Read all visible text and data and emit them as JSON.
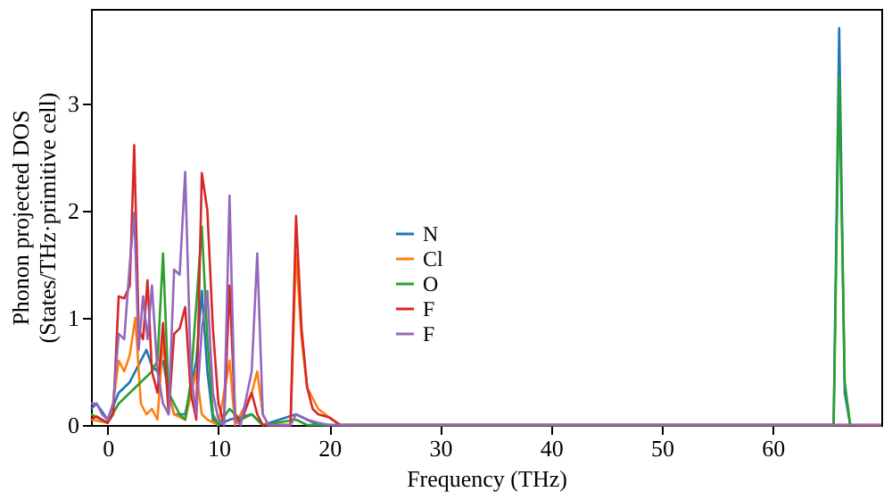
{
  "chart_data": {
    "type": "line",
    "xlabel": "Frequency (THz)",
    "ylabel": "Phonon projected DOS\n(States/THz·primitive cell)",
    "xlim": [
      -1.5,
      69.8
    ],
    "ylim": [
      0,
      3.88
    ],
    "xticks": [
      0,
      10,
      20,
      30,
      40,
      50,
      60
    ],
    "yticks": [
      0,
      1,
      2,
      3
    ],
    "grid": false,
    "legend": "center",
    "line_style": "solid",
    "marker": "none",
    "series": [
      {
        "name": "N",
        "color": "#1f77b4",
        "x": [
          -1.5,
          -1,
          0,
          1,
          2,
          3,
          3.5,
          4,
          4.5,
          5,
          5.5,
          6,
          7,
          8,
          8.5,
          9,
          9.5,
          10,
          11,
          13,
          13.5,
          14,
          17,
          18,
          19,
          65.5,
          66,
          66.5,
          67
        ],
        "values": [
          0.15,
          0.2,
          0.05,
          0.3,
          0.4,
          0.6,
          0.7,
          0.55,
          0.5,
          0.6,
          0.3,
          0.1,
          0.1,
          0.6,
          1.25,
          0.5,
          0.05,
          0,
          0.05,
          0.1,
          0.05,
          0,
          0.1,
          0.05,
          0,
          0,
          3.7,
          0.3,
          0
        ]
      },
      {
        "name": "Cl",
        "color": "#ff7f0e",
        "x": [
          -1.5,
          0,
          0.5,
          1,
          1.5,
          2,
          2.5,
          3,
          3.5,
          4,
          4.5,
          5,
          5.5,
          6,
          7,
          8,
          8.5,
          9,
          10,
          11,
          11.5,
          13,
          13.5,
          14,
          14.5,
          16.5,
          17,
          17.5,
          18,
          19,
          20,
          21,
          69.8
        ],
        "values": [
          0.05,
          0.02,
          0.2,
          0.6,
          0.5,
          0.65,
          1.0,
          0.2,
          0.1,
          0.15,
          0.05,
          0.8,
          0.3,
          0.1,
          0.05,
          0.5,
          0.1,
          0.05,
          0,
          0.6,
          0,
          0.3,
          0.5,
          0.1,
          0,
          0,
          1.6,
          0.8,
          0.35,
          0.15,
          0.07,
          0,
          0
        ]
      },
      {
        "name": "O",
        "color": "#2ca02c",
        "x": [
          -1.5,
          0,
          1,
          2,
          3,
          4,
          4.5,
          5,
          5.5,
          6,
          6.5,
          7,
          7.5,
          8.5,
          9,
          9.5,
          10,
          11,
          12,
          13,
          13.5,
          14,
          17,
          18,
          65.5,
          66,
          66.5,
          67
        ],
        "values": [
          0.1,
          0.02,
          0.2,
          0.3,
          0.4,
          0.5,
          0.6,
          1.6,
          0.3,
          0.2,
          0.1,
          0.05,
          0.4,
          1.85,
          0.8,
          0.1,
          0,
          0.15,
          0.05,
          0.1,
          0.05,
          0,
          0.05,
          0,
          0,
          3.25,
          0.4,
          0
        ]
      },
      {
        "name": "F",
        "color": "#d62728",
        "x": [
          -1.5,
          -1,
          0,
          0.5,
          1,
          1.5,
          2,
          2.4,
          2.8,
          3.2,
          3.6,
          4,
          4.5,
          5,
          5.5,
          6,
          6.5,
          7,
          7.5,
          8,
          8.5,
          9,
          9.5,
          10,
          10.5,
          11,
          11.5,
          12,
          13,
          13.5,
          14,
          16.5,
          17,
          17.5,
          18,
          18.5,
          19,
          20,
          21,
          69.8
        ],
        "values": [
          0.05,
          0.08,
          0.02,
          0.1,
          1.2,
          1.18,
          1.3,
          2.61,
          0.9,
          0.8,
          1.35,
          0.5,
          0.3,
          0.95,
          0.1,
          0.85,
          0.9,
          1.1,
          0.3,
          0.05,
          2.35,
          2.0,
          0.9,
          0.2,
          0.02,
          1.3,
          0.1,
          0.02,
          0.3,
          0.1,
          0,
          0,
          1.95,
          0.9,
          0.35,
          0.15,
          0.1,
          0.07,
          0,
          0
        ]
      },
      {
        "name": "F",
        "color": "#9467bd",
        "x": [
          -1.5,
          -1,
          -0.5,
          0,
          0.5,
          1,
          1.5,
          2,
          2.4,
          2.8,
          3.2,
          3.6,
          4,
          4.5,
          5,
          5.5,
          6,
          6.5,
          7,
          7.5,
          8,
          8.5,
          9,
          9.5,
          10,
          10.5,
          11,
          11.5,
          12,
          13,
          13.5,
          14,
          14.5,
          16.5,
          17,
          18,
          19,
          20,
          69.8
        ],
        "values": [
          0.2,
          0.2,
          0.1,
          0.05,
          0.2,
          0.85,
          0.8,
          1.5,
          1.98,
          0.7,
          1.2,
          0.8,
          1.3,
          0.5,
          0.2,
          0.1,
          1.45,
          1.4,
          2.36,
          0.5,
          0.1,
          0.9,
          1.25,
          0.3,
          0.05,
          0,
          2.14,
          0.05,
          0,
          0.5,
          1.6,
          0.1,
          0,
          0,
          0.1,
          0.05,
          0.02,
          0,
          0
        ]
      }
    ]
  }
}
